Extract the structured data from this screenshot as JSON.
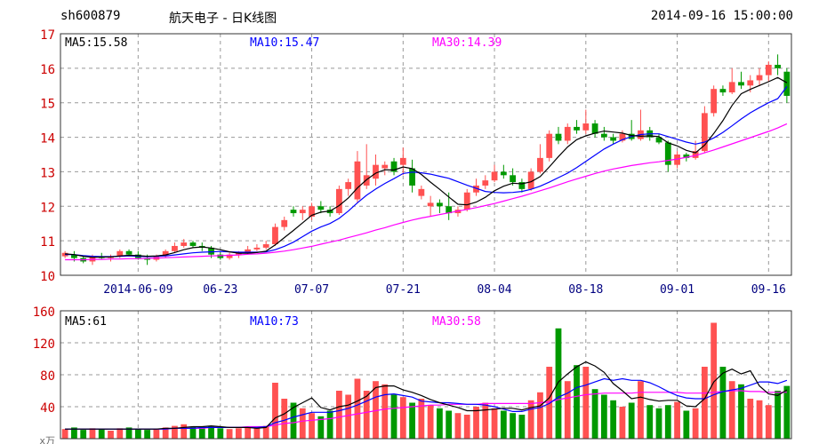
{
  "header": {
    "code": "sh600879",
    "title": "航天电子 - 日K线图",
    "datetime": "2014-09-16 15:00:00"
  },
  "colors": {
    "up": "#ff5151",
    "down": "#009900",
    "ma5": "#000000",
    "ma10": "#0000ff",
    "ma30": "#ff00ff",
    "grid": "#999999",
    "axis_text": "#cc0000"
  },
  "chart_data": [
    {
      "type": "candlestick",
      "legend": [
        {
          "label": "MA5:15.58",
          "color": "#000000"
        },
        {
          "label": "MA10:15.47",
          "color": "#0000ff"
        },
        {
          "label": "MA30:14.39",
          "color": "#ff00ff"
        }
      ],
      "ylim": [
        10,
        17
      ],
      "y_ticks": [
        "10",
        "11",
        "12",
        "13",
        "14",
        "15",
        "16",
        "17"
      ],
      "x_ticks": [
        {
          "label": "2014-06-09",
          "index": 8
        },
        {
          "label": "06-23",
          "index": 17
        },
        {
          "label": "07-07",
          "index": 27
        },
        {
          "label": "07-21",
          "index": 37
        },
        {
          "label": "08-04",
          "index": 47
        },
        {
          "label": "08-18",
          "index": 57
        },
        {
          "label": "09-01",
          "index": 67
        },
        {
          "label": "09-16",
          "index": 77
        }
      ],
      "ohlc": [
        [
          10.55,
          10.7,
          10.5,
          10.65
        ],
        [
          10.6,
          10.7,
          10.4,
          10.5
        ],
        [
          10.5,
          10.55,
          10.35,
          10.4
        ],
        [
          10.4,
          10.6,
          10.3,
          10.55
        ],
        [
          10.55,
          10.65,
          10.45,
          10.5
        ],
        [
          10.5,
          10.6,
          10.4,
          10.55
        ],
        [
          10.55,
          10.75,
          10.5,
          10.7
        ],
        [
          10.7,
          10.75,
          10.55,
          10.6
        ],
        [
          10.6,
          10.7,
          10.45,
          10.5
        ],
        [
          10.5,
          10.6,
          10.3,
          10.45
        ],
        [
          10.45,
          10.6,
          10.4,
          10.55
        ],
        [
          10.55,
          10.75,
          10.5,
          10.7
        ],
        [
          10.7,
          10.95,
          10.65,
          10.85
        ],
        [
          10.85,
          11.05,
          10.8,
          10.95
        ],
        [
          10.95,
          11.0,
          10.8,
          10.85
        ],
        [
          10.85,
          10.95,
          10.7,
          10.8
        ],
        [
          10.8,
          10.85,
          10.5,
          10.6
        ],
        [
          10.6,
          10.7,
          10.45,
          10.5
        ],
        [
          10.5,
          10.65,
          10.45,
          10.6
        ],
        [
          10.6,
          10.7,
          10.5,
          10.65
        ],
        [
          10.65,
          10.85,
          10.6,
          10.75
        ],
        [
          10.75,
          10.9,
          10.7,
          10.8
        ],
        [
          10.8,
          11.0,
          10.75,
          10.9
        ],
        [
          10.9,
          11.5,
          10.85,
          11.4
        ],
        [
          11.4,
          11.7,
          11.3,
          11.6
        ],
        [
          11.9,
          12.0,
          11.7,
          11.8
        ],
        [
          11.8,
          12.0,
          11.6,
          11.9
        ],
        [
          11.7,
          12.1,
          11.6,
          12.0
        ],
        [
          12.0,
          12.15,
          11.8,
          11.9
        ],
        [
          11.9,
          12.0,
          11.7,
          11.8
        ],
        [
          11.8,
          12.6,
          11.75,
          12.5
        ],
        [
          12.5,
          12.8,
          12.3,
          12.7
        ],
        [
          12.2,
          13.6,
          12.1,
          13.3
        ],
        [
          12.6,
          13.8,
          12.5,
          12.9
        ],
        [
          12.8,
          13.5,
          12.6,
          13.2
        ],
        [
          13.1,
          13.3,
          12.9,
          13.2
        ],
        [
          13.3,
          13.4,
          12.9,
          13.0
        ],
        [
          13.2,
          13.7,
          12.9,
          13.4
        ],
        [
          13.1,
          13.35,
          12.4,
          12.6
        ],
        [
          12.3,
          12.6,
          12.2,
          12.5
        ],
        [
          12.0,
          12.3,
          11.7,
          12.1
        ],
        [
          12.1,
          12.2,
          11.8,
          12.0
        ],
        [
          12.0,
          12.4,
          11.6,
          11.8
        ],
        [
          11.8,
          12.0,
          11.7,
          11.9
        ],
        [
          11.9,
          12.5,
          11.85,
          12.4
        ],
        [
          12.4,
          12.8,
          12.3,
          12.6
        ],
        [
          12.6,
          12.9,
          12.5,
          12.75
        ],
        [
          12.75,
          13.2,
          12.7,
          13.0
        ],
        [
          13.0,
          13.2,
          12.8,
          12.9
        ],
        [
          12.9,
          13.1,
          12.6,
          12.7
        ],
        [
          12.7,
          12.8,
          12.4,
          12.5
        ],
        [
          12.5,
          13.1,
          12.45,
          13.0
        ],
        [
          13.0,
          13.8,
          12.95,
          13.4
        ],
        [
          13.4,
          14.2,
          13.3,
          14.1
        ],
        [
          14.1,
          14.3,
          13.8,
          13.9
        ],
        [
          13.9,
          14.4,
          13.8,
          14.3
        ],
        [
          14.3,
          14.5,
          14.1,
          14.2
        ],
        [
          14.2,
          14.8,
          14.1,
          14.4
        ],
        [
          14.4,
          14.5,
          14.0,
          14.1
        ],
        [
          14.1,
          14.3,
          13.9,
          14.0
        ],
        [
          14.0,
          14.1,
          13.8,
          13.9
        ],
        [
          13.9,
          14.2,
          13.85,
          14.1
        ],
        [
          14.1,
          14.5,
          13.9,
          13.95
        ],
        [
          13.95,
          14.8,
          13.9,
          14.2
        ],
        [
          14.2,
          14.3,
          13.9,
          14.0
        ],
        [
          14.0,
          14.1,
          13.8,
          13.85
        ],
        [
          13.85,
          13.9,
          13.0,
          13.2
        ],
        [
          13.2,
          13.6,
          13.1,
          13.5
        ],
        [
          13.5,
          13.55,
          13.3,
          13.4
        ],
        [
          13.4,
          13.9,
          13.35,
          13.6
        ],
        [
          13.6,
          14.9,
          13.55,
          14.7
        ],
        [
          14.7,
          15.5,
          14.6,
          15.4
        ],
        [
          15.4,
          15.5,
          15.2,
          15.3
        ],
        [
          15.3,
          16.0,
          15.25,
          15.6
        ],
        [
          15.6,
          15.9,
          15.4,
          15.5
        ],
        [
          15.5,
          15.8,
          15.3,
          15.65
        ],
        [
          15.65,
          16.0,
          15.5,
          15.8
        ],
        [
          15.8,
          16.2,
          15.6,
          16.1
        ],
        [
          16.1,
          16.4,
          15.8,
          16.0
        ],
        [
          15.9,
          16.0,
          15.0,
          15.2
        ]
      ],
      "ma5": [
        10.62,
        10.6,
        10.55,
        10.52,
        10.53,
        10.53,
        10.56,
        10.58,
        10.57,
        10.55,
        10.56,
        10.59,
        10.66,
        10.74,
        10.8,
        10.82,
        10.79,
        10.74,
        10.68,
        10.64,
        10.64,
        10.66,
        10.7,
        10.88,
        11.09,
        11.3,
        11.52,
        11.74,
        11.83,
        11.86,
        12.02,
        12.24,
        12.53,
        12.77,
        12.96,
        13.06,
        13.05,
        13.14,
        13.09,
        12.92,
        12.7,
        12.49,
        12.27,
        12.06,
        12.04,
        12.12,
        12.26,
        12.45,
        12.58,
        12.67,
        12.65,
        12.71,
        12.86,
        13.14,
        13.44,
        13.72,
        13.93,
        14.04,
        14.12,
        14.18,
        14.15,
        14.12,
        14.05,
        14.03,
        14.04,
        14.02,
        13.84,
        13.75,
        13.62,
        13.55,
        13.77,
        14.11,
        14.48,
        14.92,
        15.26,
        15.39,
        15.5,
        15.61,
        15.73,
        15.58
      ],
      "ma10": [
        10.6,
        10.6,
        10.57,
        10.55,
        10.54,
        10.54,
        10.55,
        10.56,
        10.55,
        10.54,
        10.55,
        10.56,
        10.59,
        10.62,
        10.65,
        10.67,
        10.68,
        10.69,
        10.68,
        10.67,
        10.67,
        10.67,
        10.68,
        10.74,
        10.84,
        10.96,
        11.12,
        11.28,
        11.4,
        11.5,
        11.65,
        11.86,
        12.1,
        12.32,
        12.5,
        12.66,
        12.8,
        12.95,
        12.99,
        12.97,
        12.93,
        12.87,
        12.81,
        12.71,
        12.61,
        12.52,
        12.43,
        12.4,
        12.39,
        12.4,
        12.43,
        12.49,
        12.58,
        12.7,
        12.83,
        12.96,
        13.12,
        13.3,
        13.48,
        13.66,
        13.8,
        13.93,
        14.02,
        14.08,
        14.1,
        14.1,
        14.02,
        13.94,
        13.86,
        13.8,
        13.86,
        13.98,
        14.14,
        14.33,
        14.53,
        14.71,
        14.86,
        15.0,
        15.12,
        15.47
      ],
      "ma30": [
        10.45,
        10.45,
        10.45,
        10.46,
        10.46,
        10.47,
        10.47,
        10.48,
        10.48,
        10.49,
        10.5,
        10.51,
        10.52,
        10.53,
        10.54,
        10.55,
        10.56,
        10.57,
        10.58,
        10.59,
        10.61,
        10.62,
        10.64,
        10.67,
        10.7,
        10.74,
        10.79,
        10.84,
        10.9,
        10.96,
        11.02,
        11.09,
        11.16,
        11.23,
        11.31,
        11.38,
        11.46,
        11.53,
        11.6,
        11.66,
        11.71,
        11.76,
        11.81,
        11.86,
        11.91,
        11.96,
        12.02,
        12.08,
        12.15,
        12.22,
        12.29,
        12.37,
        12.45,
        12.53,
        12.62,
        12.71,
        12.79,
        12.87,
        12.95,
        13.02,
        13.08,
        13.13,
        13.18,
        13.22,
        13.26,
        13.29,
        13.33,
        13.37,
        13.42,
        13.47,
        13.55,
        13.63,
        13.72,
        13.81,
        13.9,
        13.99,
        14.08,
        14.17,
        14.27,
        14.39
      ]
    },
    {
      "type": "bar",
      "unit_label": "x万",
      "legend": [
        {
          "label": "MA5:61",
          "color": "#000000"
        },
        {
          "label": "MA10:73",
          "color": "#0000ff"
        },
        {
          "label": "MA30:58",
          "color": "#ff00ff"
        }
      ],
      "ylim": [
        0,
        160
      ],
      "y_ticks": [
        "40",
        "80",
        "120",
        "160"
      ],
      "volumes": [
        12,
        14,
        11,
        13,
        12,
        10,
        13,
        14,
        12,
        11,
        12,
        14,
        16,
        18,
        15,
        14,
        16,
        13,
        12,
        13,
        15,
        14,
        16,
        70,
        50,
        45,
        38,
        32,
        28,
        35,
        60,
        55,
        75,
        60,
        72,
        68,
        55,
        52,
        45,
        50,
        42,
        38,
        35,
        32,
        30,
        40,
        45,
        38,
        35,
        32,
        30,
        48,
        58,
        90,
        138,
        72,
        92,
        90,
        62,
        55,
        48,
        40,
        45,
        72,
        42,
        38,
        42,
        46,
        35,
        38,
        90,
        145,
        90,
        72,
        68,
        50,
        48,
        42,
        60,
        66
      ],
      "vol_ma5": [
        12,
        12,
        12,
        12,
        12,
        12,
        12,
        12,
        12,
        12,
        12,
        13,
        13,
        14,
        15,
        15,
        16,
        15,
        14,
        14,
        14,
        13,
        14,
        26,
        31,
        39,
        45,
        51,
        39,
        36,
        40,
        42,
        47,
        53,
        64,
        66,
        66,
        61,
        58,
        54,
        49,
        45,
        42,
        39,
        35,
        35,
        36,
        37,
        38,
        38,
        36,
        39,
        41,
        51,
        71,
        81,
        90,
        96,
        91,
        83,
        69,
        60,
        50,
        52,
        49,
        47,
        48,
        48,
        41,
        40,
        50,
        71,
        82,
        87,
        81,
        85,
        66,
        56,
        54,
        61
      ],
      "vol_ma10": [
        12,
        12,
        12,
        12,
        12,
        12,
        12,
        12,
        12,
        12,
        12,
        12,
        13,
        13,
        13,
        14,
        14,
        14,
        14,
        14,
        14,
        14,
        15,
        20,
        23,
        27,
        30,
        33,
        33,
        33,
        35,
        38,
        42,
        47,
        52,
        55,
        56,
        54,
        52,
        47,
        46,
        45,
        45,
        44,
        43,
        43,
        42,
        40,
        37,
        34,
        34,
        37,
        39,
        44,
        52,
        57,
        64,
        67,
        71,
        75,
        73,
        75,
        73,
        73,
        70,
        65,
        59,
        54,
        51,
        50,
        50,
        55,
        59,
        61,
        63,
        67,
        71,
        71,
        69,
        73
      ],
      "vol_ma30": [
        12,
        12,
        12,
        12,
        12,
        12,
        12,
        12,
        12,
        12,
        12,
        12,
        13,
        13,
        13,
        13,
        14,
        14,
        14,
        14,
        15,
        15,
        15,
        17,
        19,
        20,
        22,
        23,
        24,
        25,
        27,
        29,
        31,
        33,
        35,
        37,
        38,
        39,
        40,
        41,
        42,
        42,
        43,
        43,
        43,
        43,
        44,
        44,
        44,
        44,
        44,
        44,
        45,
        46,
        49,
        51,
        53,
        55,
        56,
        57,
        57,
        57,
        57,
        58,
        58,
        58,
        58,
        58,
        57,
        57,
        57,
        58,
        59,
        60,
        60,
        59,
        59,
        58,
        58,
        58
      ]
    }
  ]
}
